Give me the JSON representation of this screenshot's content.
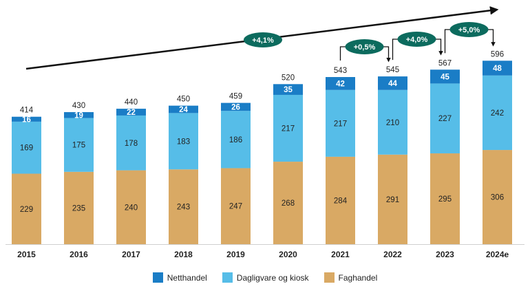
{
  "chart_data": {
    "type": "bar",
    "stacked": true,
    "title": "",
    "xlabel": "",
    "ylabel": "",
    "categories": [
      "2015",
      "2016",
      "2017",
      "2018",
      "2019",
      "2020",
      "2021",
      "2022",
      "2023",
      "2024e"
    ],
    "series": [
      {
        "name": "Faghandel",
        "color": "#d9a964",
        "values": [
          229,
          235,
          240,
          243,
          247,
          268,
          284,
          291,
          295,
          306
        ]
      },
      {
        "name": "Dagligvare og kiosk",
        "color": "#56bde8",
        "values": [
          169,
          175,
          178,
          183,
          186,
          217,
          217,
          210,
          227,
          242
        ]
      },
      {
        "name": "Netthandel",
        "color": "#1a7dc6",
        "values": [
          16,
          19,
          22,
          24,
          26,
          35,
          42,
          44,
          45,
          48
        ]
      }
    ],
    "totals": [
      "414",
      "430",
      "440",
      "450",
      "459",
      "520",
      "543",
      "545",
      "567",
      "596"
    ],
    "growth_annotations": [
      {
        "label": "+4,1%",
        "from": "2015",
        "to": "2024e",
        "color": "#0c6b5e"
      },
      {
        "label": "+0,5%",
        "from": "2021",
        "to": "2022",
        "color": "#0c6b5e"
      },
      {
        "label": "+4,0%",
        "from": "2022",
        "to": "2023",
        "color": "#0c6b5e"
      },
      {
        "label": "+5,0%",
        "from": "2023",
        "to": "2024e",
        "color": "#0c6b5e"
      }
    ],
    "legend_position": "bottom",
    "grid": false
  }
}
